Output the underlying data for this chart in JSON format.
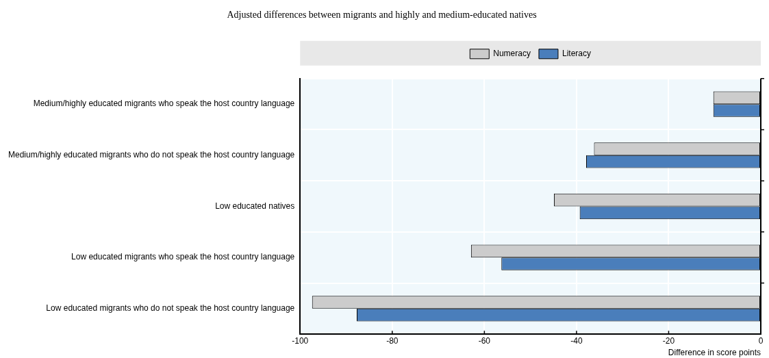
{
  "chart_data": {
    "type": "bar",
    "orientation": "horizontal",
    "title": "Adjusted differences between migrants and highly and medium-educated natives",
    "xlabel": "Difference in score points",
    "categories": [
      "Medium/highly educated migrants who speak the host country language",
      "Medium/highly educated migrants who do not speak the host country language",
      "Low educated natives",
      "Low educated migrants who speak the host country language",
      "Low educated migrants who do not speak the host country language"
    ],
    "series": [
      {
        "name": "Numeracy",
        "color": "#cccccc",
        "values": [
          -10.3,
          -36.2,
          -44.9,
          -62.9,
          -97.4
        ]
      },
      {
        "name": "Literacy",
        "color": "#4a7ebb",
        "values": [
          -10.3,
          -37.9,
          -39.3,
          -56.3,
          -87.7
        ]
      }
    ],
    "xlim": [
      -100,
      0
    ],
    "xticks": [
      -100,
      -80,
      -60,
      -40,
      -20,
      0
    ],
    "grid": true,
    "legend": "top"
  }
}
